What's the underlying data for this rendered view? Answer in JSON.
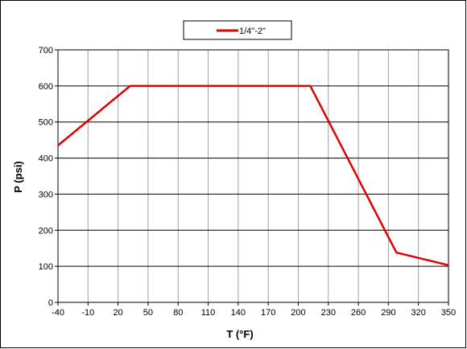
{
  "chart_data": {
    "type": "line",
    "title": "",
    "xlabel": "T (°F)",
    "ylabel": "P (psi)",
    "xlim": [
      -40,
      350
    ],
    "ylim": [
      0,
      700
    ],
    "x_ticks": [
      "-40",
      "-10",
      "20",
      "50",
      "80",
      "110",
      "140",
      "170",
      "200",
      "230",
      "260",
      "290",
      "320",
      "350"
    ],
    "y_ticks": [
      "0",
      "100",
      "200",
      "300",
      "400",
      "500",
      "600",
      "700"
    ],
    "grid": true,
    "legend_position": "top-center",
    "series": [
      {
        "name": "1/4\"-2\"",
        "color": "#e00000",
        "x": [
          -40,
          32,
          212,
          298,
          350
        ],
        "y": [
          435,
          600,
          600,
          138,
          103
        ]
      }
    ]
  }
}
